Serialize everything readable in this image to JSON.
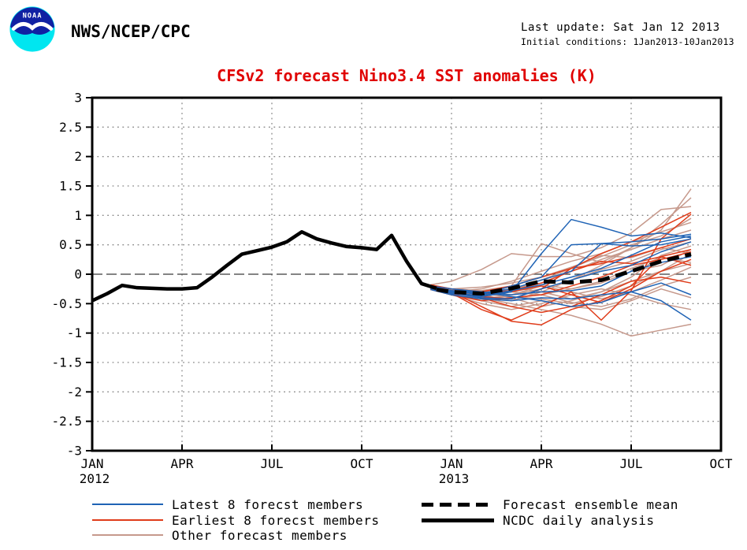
{
  "header": {
    "agency": "NWS/NCEP/CPC",
    "last_update": "Last update: Sat Jan 12 2013",
    "initial_conditions": "Initial conditions: 1Jan2013-10Jan2013",
    "logo_text": "NOAA"
  },
  "title": "CFSv2 forecast Nino3.4 SST anomalies (K)",
  "colors": {
    "title": "#e00000",
    "latest8": "#1f63b5",
    "earliest8": "#e03c1a",
    "other": "#c6998c",
    "analysis": "#000000",
    "mean": "#000000",
    "grid": "#8a8a8a",
    "zero_line": "#3a3a3a",
    "logo_dark_blue": "#1021a3",
    "logo_cyan": "#00e6f0"
  },
  "legend": {
    "left": [
      {
        "label": "Latest 8 forecst members",
        "color": "#1f63b5",
        "style": "solid-thin"
      },
      {
        "label": "Earliest 8 forecst members",
        "color": "#e03c1a",
        "style": "solid-thin"
      },
      {
        "label": "Other forecast members",
        "color": "#c6998c",
        "style": "solid-thin"
      }
    ],
    "right": [
      {
        "label": "Forecast ensemble mean",
        "color": "#000000",
        "style": "dashed-thick"
      },
      {
        "label": "NCDC daily analysis",
        "color": "#000000",
        "style": "solid-thick"
      }
    ]
  },
  "chart_data": {
    "type": "line",
    "title": "CFSv2 forecast Nino3.4 SST anomalies (K)",
    "xlabel": "",
    "ylabel": "",
    "x_axis": {
      "unit": "months since Jan 2012",
      "range_months": [
        0,
        21
      ],
      "tick_months": [
        0,
        3,
        6,
        9,
        12,
        15,
        18,
        21
      ],
      "tick_labels": [
        "JAN",
        "APR",
        "JUL",
        "OCT",
        "JAN",
        "APR",
        "JUL",
        "OCT"
      ],
      "year_labels": [
        "2012",
        "",
        "",
        "",
        "2013",
        "",
        "",
        ""
      ],
      "grid_months": [
        3,
        6,
        9,
        12,
        15,
        18
      ]
    },
    "y_axis": {
      "range": [
        -3,
        3
      ],
      "step": 0.5,
      "tick_values": [
        3,
        2.5,
        2,
        1.5,
        1,
        0.5,
        0,
        -0.5,
        -1,
        -1.5,
        -2,
        -2.5,
        -3
      ],
      "tick_labels": [
        "3",
        "2.5",
        "2",
        "1.5",
        "1",
        "0.5",
        "0",
        "-0.5",
        "-1",
        "-1.5",
        "-2",
        "-2.5",
        "-3"
      ],
      "grid_values": [
        -2.5,
        -2,
        -1.5,
        -1,
        -0.5,
        0.5,
        1,
        1.5,
        2,
        2.5
      ],
      "zero_line": true
    },
    "series": {
      "ncdc_daily_analysis": {
        "label": "NCDC daily analysis",
        "color": "#000000",
        "style": "solid-thick",
        "x_months": [
          0,
          0.5,
          1,
          1.5,
          2,
          2.5,
          3,
          3.5,
          4,
          4.5,
          5,
          5.5,
          6,
          6.5,
          7,
          7.5,
          8,
          8.5,
          9,
          9.5,
          10,
          10.5,
          11,
          11.5
        ],
        "values": [
          -0.45,
          -0.33,
          -0.19,
          -0.23,
          -0.24,
          -0.25,
          -0.25,
          -0.23,
          -0.05,
          0.15,
          0.34,
          0.4,
          0.46,
          0.55,
          0.72,
          0.6,
          0.53,
          0.47,
          0.45,
          0.42,
          0.66,
          0.22,
          -0.16,
          -0.24
        ]
      },
      "forecast_ensemble_mean": {
        "label": "Forecast ensemble mean",
        "color": "#000000",
        "style": "dashed-thick",
        "x_months": [
          11.5,
          12,
          13,
          14,
          15,
          16,
          17,
          18,
          19,
          20
        ],
        "values": [
          -0.26,
          -0.3,
          -0.33,
          -0.24,
          -0.12,
          -0.14,
          -0.1,
          0.05,
          0.22,
          0.34
        ]
      },
      "members": {
        "x_months": [
          11.3,
          12,
          13,
          14,
          15,
          16,
          17,
          18,
          19,
          20
        ],
        "groups": [
          {
            "name": "Other forecast members",
            "color": "#c6998c",
            "lines": [
              [
                -0.22,
                -0.25,
                -0.28,
                -0.2,
                0.52,
                0.35,
                0.2,
                0.45,
                0.85,
                1.3
              ],
              [
                -0.24,
                -0.3,
                -0.35,
                -0.45,
                -0.3,
                -0.1,
                0.15,
                0.45,
                0.75,
                1.45
              ],
              [
                -0.18,
                -0.12,
                0.08,
                0.35,
                0.3,
                0.3,
                0.45,
                0.7,
                1.1,
                1.15
              ],
              [
                -0.26,
                -0.32,
                -0.4,
                -0.5,
                -0.6,
                -0.7,
                -0.85,
                -1.05,
                -0.95,
                -0.85
              ],
              [
                -0.22,
                -0.3,
                -0.45,
                -0.35,
                -0.2,
                -0.3,
                -0.42,
                -0.3,
                -0.1,
                0.12
              ],
              [
                -0.2,
                -0.25,
                -0.3,
                -0.25,
                -0.15,
                0.05,
                0.25,
                0.42,
                0.6,
                0.75
              ],
              [
                -0.25,
                -0.35,
                -0.4,
                -0.38,
                -0.42,
                -0.5,
                -0.38,
                -0.2,
                0.05,
                0.35
              ],
              [
                -0.23,
                -0.28,
                -0.32,
                -0.4,
                -0.55,
                -0.45,
                -0.3,
                -0.05,
                0.32,
                0.48
              ],
              [
                -0.21,
                -0.3,
                -0.25,
                -0.12,
                0.05,
                0.22,
                0.35,
                0.55,
                0.72,
                0.88
              ],
              [
                -0.26,
                -0.33,
                -0.45,
                -0.55,
                -0.45,
                -0.55,
                -0.6,
                -0.45,
                -0.25,
                -0.4
              ],
              [
                -0.22,
                -0.27,
                -0.3,
                -0.35,
                -0.25,
                -0.1,
                0.08,
                0.22,
                0.42,
                0.55
              ],
              [
                -0.24,
                -0.3,
                -0.38,
                -0.3,
                -0.35,
                -0.25,
                -0.12,
                0.1,
                0.28,
                0.2
              ],
              [
                -0.19,
                -0.25,
                -0.22,
                -0.15,
                -0.05,
                0.12,
                0.3,
                0.5,
                0.65,
                0.95
              ],
              [
                -0.26,
                -0.35,
                -0.5,
                -0.6,
                -0.5,
                -0.35,
                -0.25,
                -0.35,
                -0.5,
                -0.6
              ],
              [
                -0.22,
                -0.28,
                -0.35,
                -0.3,
                -0.18,
                -0.25,
                -0.15,
                0.05,
                0.15,
                0.42
              ],
              [
                -0.23,
                -0.3,
                -0.28,
                -0.22,
                -0.3,
                -0.42,
                -0.3,
                -0.12,
                0.05,
                0.18
              ],
              [
                -0.25,
                -0.32,
                -0.36,
                -0.25,
                -0.1,
                0.1,
                0.32,
                0.28,
                0.45,
                0.35
              ],
              [
                -0.21,
                -0.26,
                -0.3,
                -0.4,
                -0.35,
                -0.48,
                -0.55,
                -0.42,
                -0.2,
                -0.05
              ]
            ]
          },
          {
            "name": "Earliest 8 forecst members",
            "color": "#e03c1a",
            "lines": [
              [
                -0.23,
                -0.3,
                -0.55,
                -0.8,
                -0.86,
                -0.6,
                -0.45,
                -0.2,
                0.3,
                0.42
              ],
              [
                -0.25,
                -0.32,
                -0.6,
                -0.78,
                -0.55,
                -0.3,
                -0.78,
                -0.28,
                0.6,
                1.02
              ],
              [
                -0.2,
                -0.28,
                -0.35,
                -0.3,
                -0.2,
                -0.35,
                -0.48,
                -0.25,
                0.05,
                0.25
              ],
              [
                -0.22,
                -0.3,
                -0.38,
                -0.42,
                -0.25,
                0.1,
                0.35,
                0.55,
                0.8,
                1.05
              ],
              [
                -0.18,
                -0.25,
                -0.3,
                -0.2,
                -0.05,
                0.1,
                0.18,
                0.3,
                0.45,
                0.6
              ],
              [
                -0.26,
                -0.35,
                -0.45,
                -0.4,
                -0.35,
                -0.2,
                -0.05,
                0.15,
                0.25,
                0.38
              ],
              [
                -0.24,
                -0.3,
                -0.4,
                -0.55,
                -0.65,
                -0.55,
                -0.35,
                -0.12,
                -0.05,
                -0.15
              ],
              [
                -0.21,
                -0.28,
                -0.32,
                -0.28,
                -0.15,
                0.05,
                0.22,
                0.18,
                0.3,
                0.15
              ]
            ]
          },
          {
            "name": "Latest 8 forecst members",
            "color": "#1f63b5",
            "lines": [
              [
                -0.2,
                -0.3,
                -0.38,
                -0.3,
                0.35,
                0.93,
                0.8,
                0.65,
                0.7,
                0.62
              ],
              [
                -0.22,
                -0.28,
                -0.35,
                -0.2,
                -0.05,
                0.5,
                0.52,
                0.55,
                0.6,
                0.68
              ],
              [
                -0.24,
                -0.32,
                -0.4,
                -0.42,
                -0.25,
                -0.1,
                0.05,
                0.15,
                0.38,
                0.55
              ],
              [
                -0.2,
                -0.25,
                -0.3,
                -0.35,
                -0.3,
                -0.28,
                -0.2,
                0.05,
                0.2,
                0.3
              ],
              [
                -0.26,
                -0.35,
                -0.42,
                -0.45,
                -0.4,
                -0.42,
                -0.35,
                -0.3,
                -0.45,
                -0.78
              ],
              [
                -0.22,
                -0.3,
                -0.32,
                -0.25,
                -0.1,
                0.05,
                0.52,
                0.48,
                0.5,
                0.6
              ],
              [
                -0.24,
                -0.28,
                -0.3,
                -0.38,
                -0.45,
                -0.55,
                -0.48,
                -0.3,
                -0.15,
                -0.35
              ],
              [
                -0.21,
                -0.33,
                -0.36,
                -0.28,
                -0.18,
                -0.05,
                0.1,
                0.32,
                0.55,
                0.65
              ]
            ]
          }
        ]
      }
    }
  }
}
